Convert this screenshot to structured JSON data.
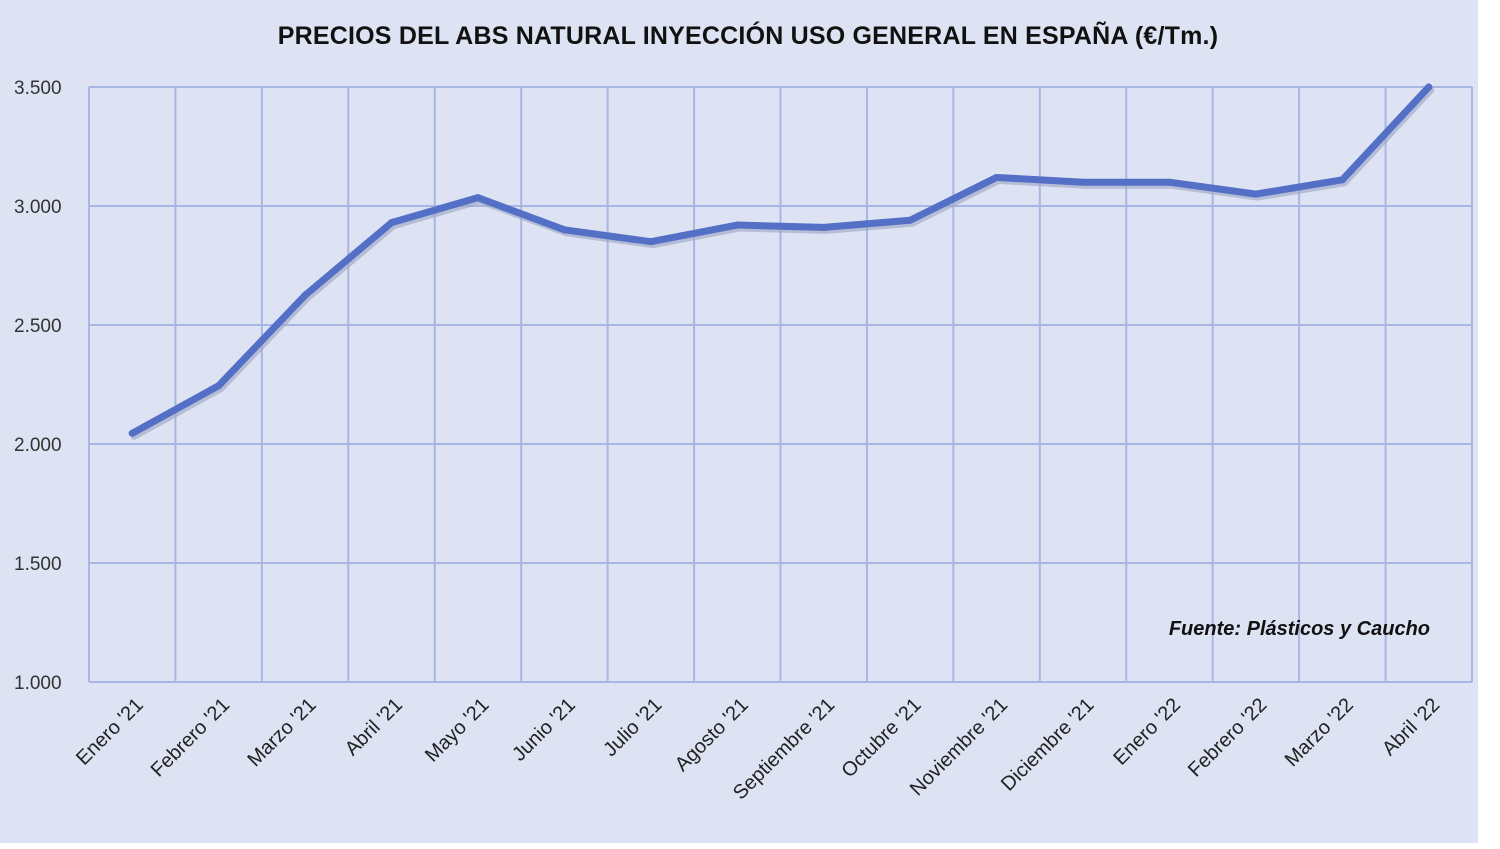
{
  "chart_data": {
    "type": "line",
    "title": "PRECIOS DEL ABS NATURAL INYECCIÓN  USO GENERAL EN ESPAÑA (€/Tm.)",
    "xlabel": "",
    "ylabel": "",
    "categories": [
      "Enero '21",
      "Febrero '21",
      "Marzo '21",
      "Abril '21",
      "Mayo '21",
      "Junio '21",
      "Julio '21",
      "Agosto '21",
      "Septiembre '21",
      "Octubre '21",
      "Noviembre '21",
      "Diciembre '21",
      "Enero '22",
      "Febrero '22",
      "Marzo '22",
      "Abril '22"
    ],
    "series": [
      {
        "values": [
          2045,
          2245,
          2625,
          2930,
          3035,
          2900,
          2850,
          2920,
          2910,
          2940,
          3120,
          3100,
          3100,
          3050,
          3110,
          3500
        ]
      }
    ],
    "ylim": [
      1000,
      3500
    ],
    "yticks": [
      1000,
      1500,
      2000,
      2500,
      3000,
      3500
    ],
    "ytick_labels": [
      "1.000",
      "1.500",
      "2.000",
      "2.500",
      "3.000",
      "3.500"
    ],
    "grid": true,
    "legend": "none",
    "annotation": "Fuente: Plásticos y Caucho",
    "colors": {
      "line": "#5470c6",
      "grid": "#a7b6e2",
      "background": "#dde3f3"
    }
  }
}
